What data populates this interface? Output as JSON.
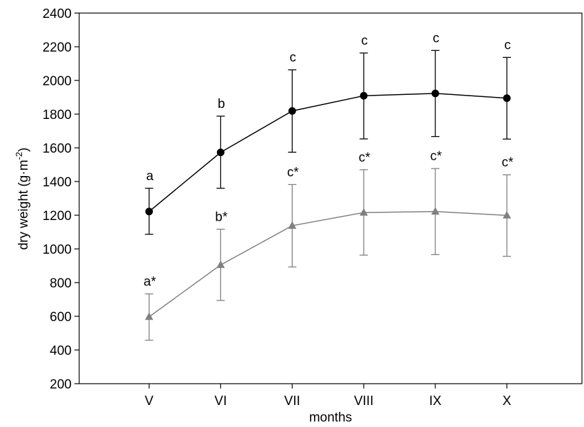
{
  "chart_data": {
    "type": "line",
    "title": "",
    "xlabel": "months",
    "ylabel_main": "dry weight (g·m",
    "ylabel_sup": "-2",
    "ylabel_close": ")",
    "categories": [
      "V",
      "VI",
      "VII",
      "VIII",
      "IX",
      "X"
    ],
    "ylim": [
      200,
      2400
    ],
    "yticks": [
      "200",
      "400",
      "600",
      "800",
      "1000",
      "1200",
      "1400",
      "1600",
      "1800",
      "2000",
      "2200",
      "2400"
    ],
    "grid": false,
    "legend": "none",
    "series": [
      {
        "color": "#000000",
        "marker": "circle",
        "values": [
          1222,
          1573,
          1819,
          1909,
          1923,
          1895
        ],
        "err_upper": [
          1360,
          1788,
          2063,
          2163,
          2178,
          2137
        ],
        "err_lower": [
          1087,
          1360,
          1574,
          1653,
          1667,
          1652
        ],
        "labels": [
          "a",
          "b",
          "c",
          "c",
          "c",
          "c"
        ]
      },
      {
        "color": "#808080",
        "marker": "triangle",
        "values": [
          597,
          905,
          1138,
          1216,
          1222,
          1199
        ],
        "err_upper": [
          733,
          1117,
          1382,
          1470,
          1477,
          1440
        ],
        "err_lower": [
          458,
          694,
          893,
          963,
          966,
          956
        ],
        "labels": [
          "a*",
          "b*",
          "c*",
          "c*",
          "c*",
          "c*"
        ]
      }
    ]
  }
}
